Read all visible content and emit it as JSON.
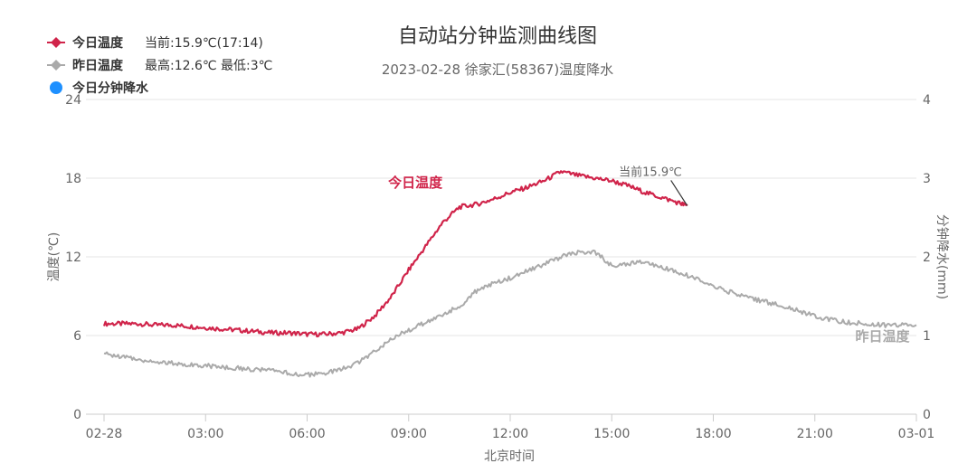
{
  "chart_data": {
    "type": "line",
    "title": "自动站分钟监测曲线图",
    "subtitle": "2023-02-28 徐家汇(58367)温度降水",
    "xlabel": "北京时间",
    "ylabel": "温度(℃)",
    "y2label": "分钟降水(mm)",
    "x_ticks": [
      "02-28",
      "03:00",
      "06:00",
      "09:00",
      "12:00",
      "15:00",
      "18:00",
      "21:00",
      "03-01"
    ],
    "x_range_hours": [
      0,
      24
    ],
    "ylim": [
      0,
      24
    ],
    "y_ticks": [
      "0",
      "6",
      "12",
      "18",
      "24"
    ],
    "y2lim": [
      0,
      4
    ],
    "y2_ticks": [
      "0",
      "1",
      "2",
      "3",
      "4"
    ],
    "grid": true,
    "legend": {
      "placement": "top-left",
      "items": [
        {
          "name": "今日温度",
          "info": "当前:15.9℃(17:14)",
          "color": "#d0244a",
          "marker": "diamond"
        },
        {
          "name": "昨日温度",
          "info": "最高:12.6℃ 最低:3℃",
          "color": "#aaaaaa",
          "marker": "diamond"
        },
        {
          "name": "今日分钟降水",
          "info": "",
          "color": "#1e90ff",
          "marker": "circle"
        }
      ]
    },
    "annotation": {
      "text": "当前15.9℃",
      "x": 17.23,
      "y": 15.9
    },
    "series": [
      {
        "name": "今日温度",
        "series_label": "今日温度",
        "color": "#d0244a",
        "x": [
          0,
          0.5,
          1,
          1.5,
          2,
          2.5,
          3,
          3.5,
          4,
          4.5,
          5,
          5.5,
          6,
          6.5,
          7,
          7.5,
          8,
          8.5,
          9,
          9.5,
          10,
          10.5,
          11,
          11.5,
          12,
          12.5,
          13,
          13.5,
          14,
          14.5,
          15,
          15.5,
          16,
          16.5,
          17,
          17.23
        ],
        "y": [
          6.9,
          6.9,
          6.9,
          6.8,
          6.8,
          6.7,
          6.6,
          6.5,
          6.4,
          6.3,
          6.2,
          6.2,
          6.1,
          6.1,
          6.2,
          6.5,
          7.5,
          9.0,
          11.0,
          12.8,
          14.6,
          15.8,
          16.0,
          16.4,
          16.9,
          17.3,
          17.8,
          18.5,
          18.2,
          18.0,
          17.8,
          17.4,
          16.9,
          16.5,
          16.1,
          15.9
        ]
      },
      {
        "name": "昨日温度",
        "series_label": "昨日温度",
        "color": "#aaaaaa",
        "x": [
          0,
          0.5,
          1,
          1.5,
          2,
          2.5,
          3,
          3.5,
          4,
          4.5,
          5,
          5.5,
          6,
          6.5,
          7,
          7.5,
          8,
          8.5,
          9,
          9.5,
          10,
          10.5,
          11,
          11.5,
          12,
          12.5,
          13,
          13.5,
          14,
          14.5,
          15,
          15.5,
          16,
          16.5,
          17,
          17.5,
          18,
          18.5,
          19,
          19.5,
          20,
          20.5,
          21,
          21.5,
          22,
          22.5,
          23,
          23.5,
          24
        ],
        "y": [
          4.6,
          4.4,
          4.2,
          4.0,
          3.9,
          3.8,
          3.7,
          3.6,
          3.5,
          3.4,
          3.3,
          3.1,
          3.0,
          3.1,
          3.4,
          3.9,
          4.8,
          5.8,
          6.4,
          7.0,
          7.6,
          8.2,
          9.4,
          10.0,
          10.4,
          10.9,
          11.4,
          12.0,
          12.3,
          12.4,
          11.3,
          11.5,
          11.6,
          11.2,
          10.8,
          10.3,
          9.8,
          9.3,
          8.9,
          8.6,
          8.3,
          7.9,
          7.5,
          7.2,
          7.0,
          6.9,
          6.8,
          6.8,
          6.8
        ]
      },
      {
        "name": "今日分钟降水",
        "color": "#1e90ff",
        "x": [],
        "y": []
      }
    ]
  }
}
